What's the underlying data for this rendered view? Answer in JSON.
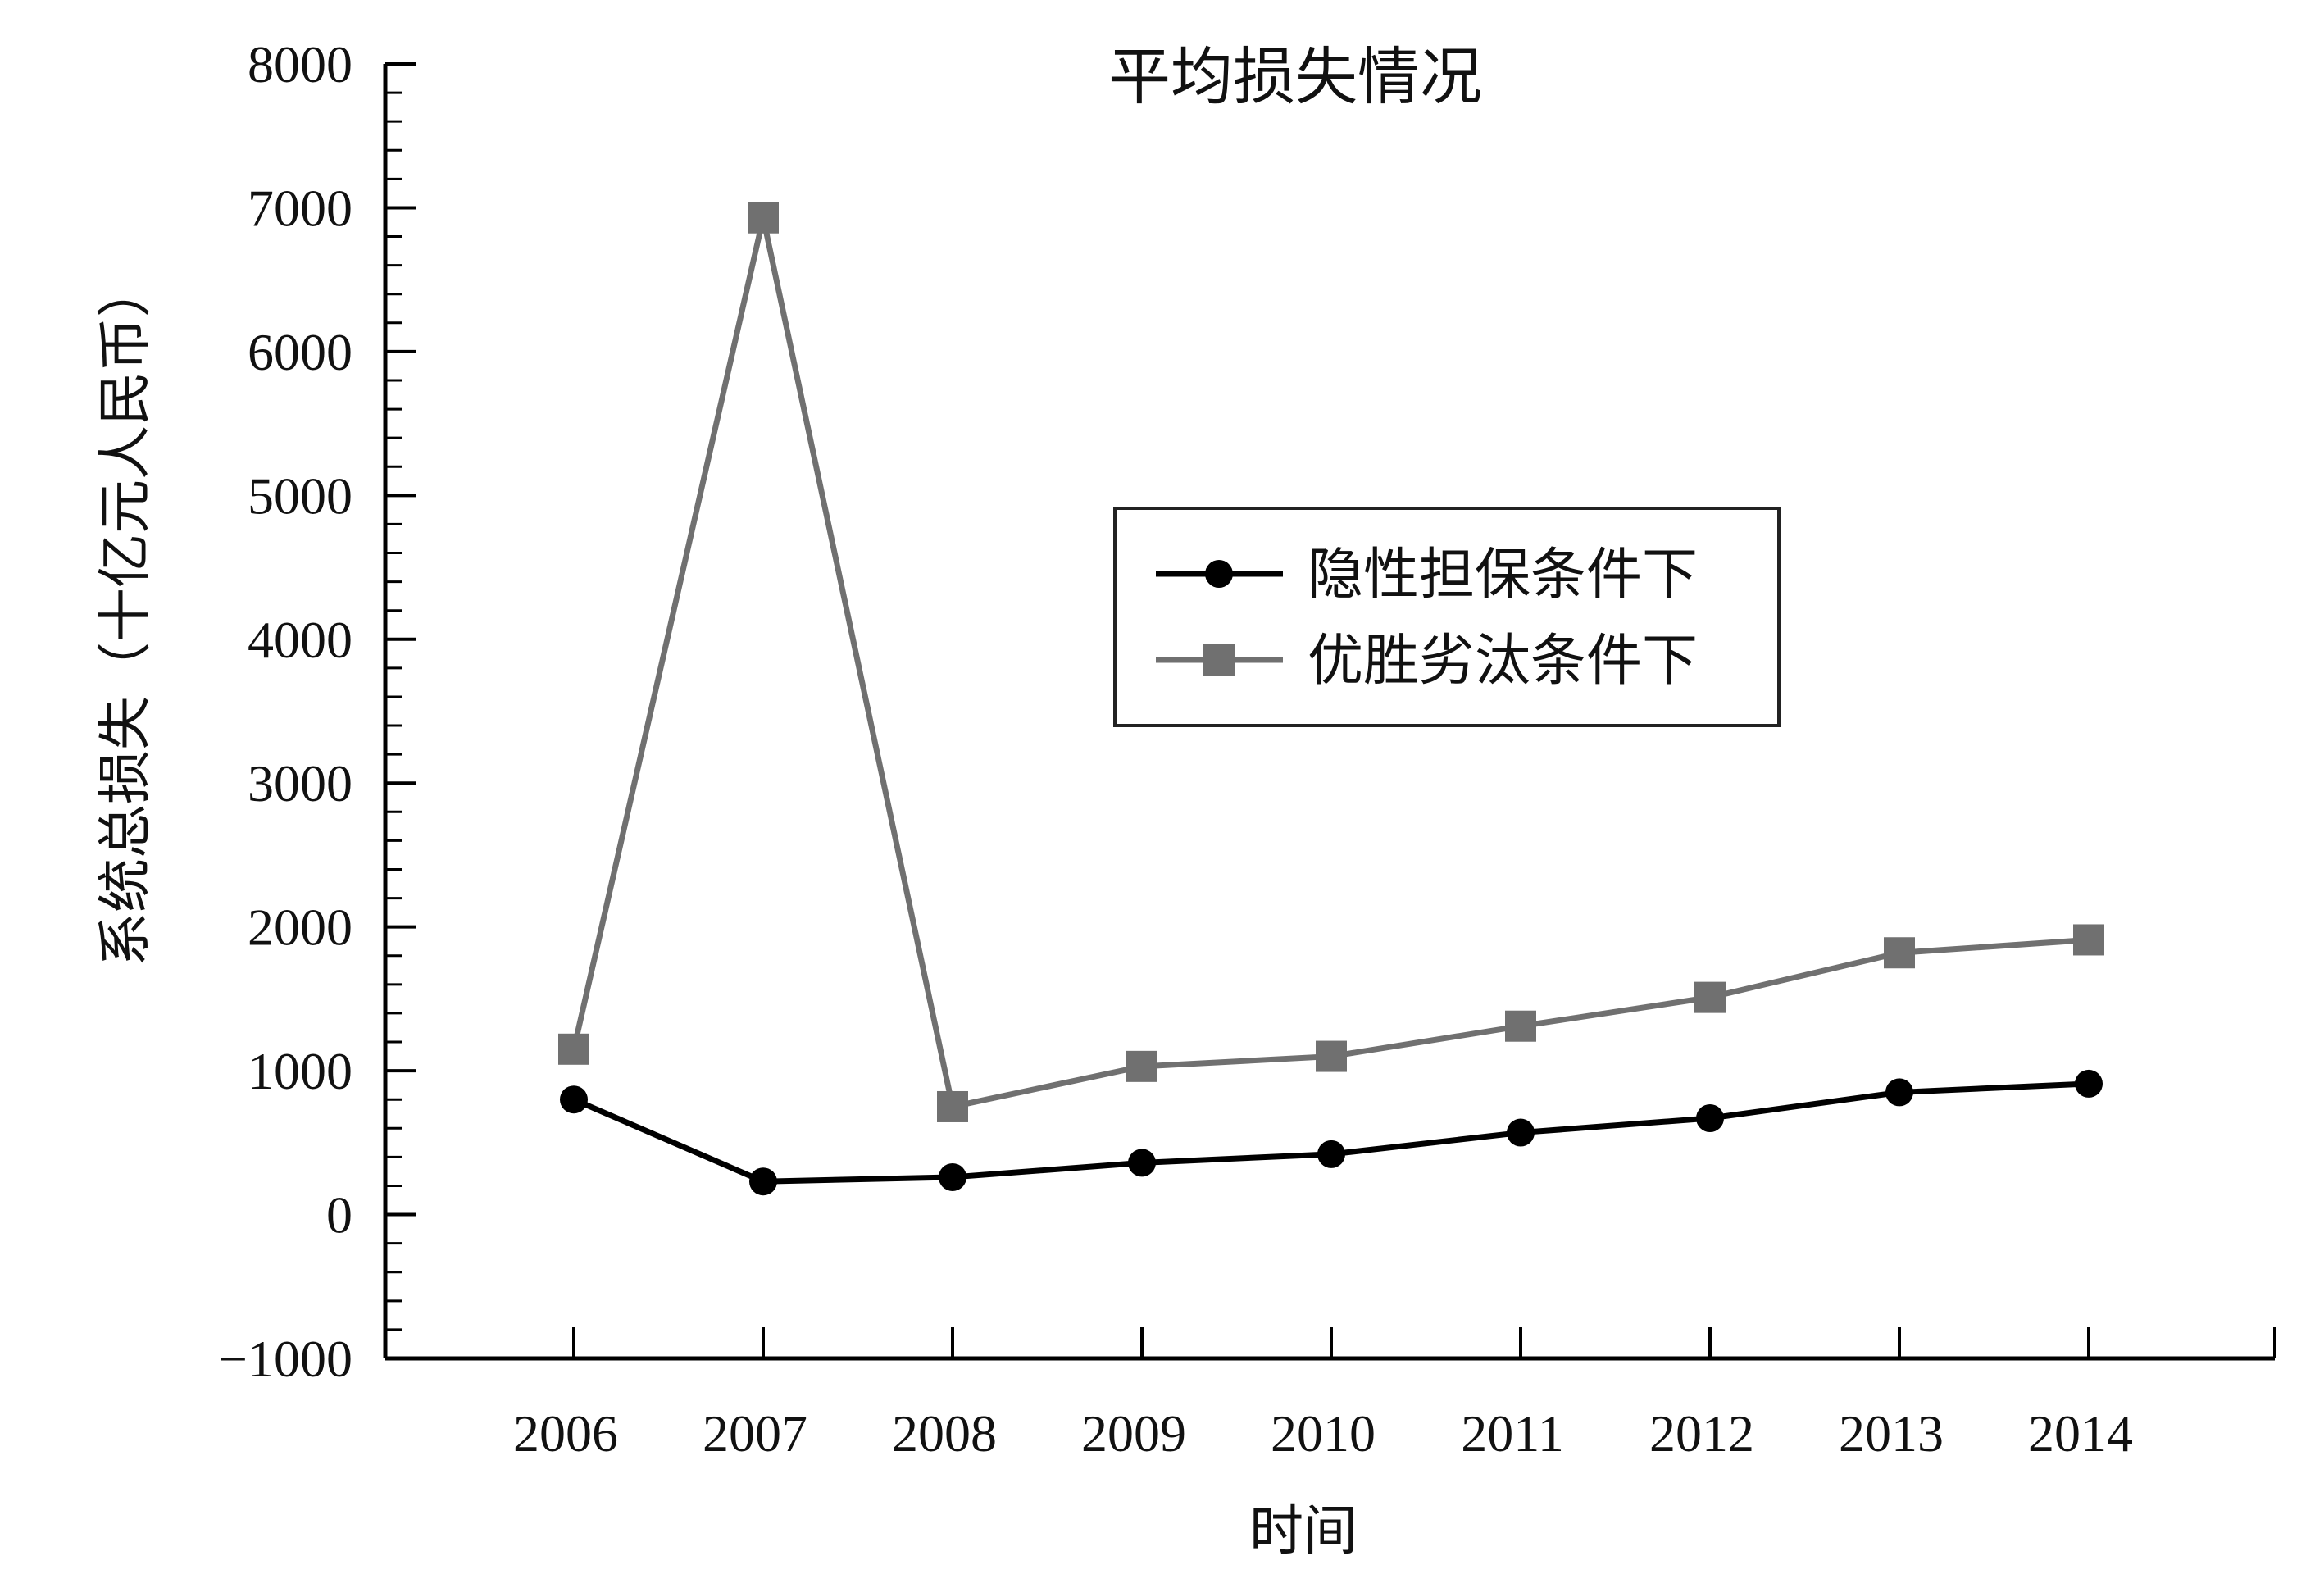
{
  "chart_data": {
    "type": "line",
    "title": "平均损失情况",
    "xlabel": "时间",
    "ylabel": "系统总损失（十亿元人民币）",
    "categories": [
      "2006",
      "2007",
      "2008",
      "2009",
      "2010",
      "2011",
      "2012",
      "2013",
      "2014"
    ],
    "ylim": [
      -1000,
      8000
    ],
    "yticks": [
      -1000,
      0,
      1000,
      2000,
      3000,
      4000,
      5000,
      6000,
      7000,
      8000
    ],
    "ytick_labels": [
      "−1000",
      "0",
      "1000",
      "2000",
      "3000",
      "4000",
      "5000",
      "6000",
      "7000",
      "8000"
    ],
    "grid": false,
    "legend_position": "center-right",
    "series": [
      {
        "name": "隐性担保条件下",
        "marker": "circle",
        "color": "#000000",
        "values": [
          800,
          230,
          260,
          360,
          420,
          570,
          670,
          850,
          910
        ]
      },
      {
        "name": "优胜劣汰条件下",
        "marker": "square",
        "color": "#707070",
        "values": [
          1150,
          6930,
          750,
          1030,
          1100,
          1310,
          1510,
          1820,
          1910
        ]
      }
    ]
  }
}
